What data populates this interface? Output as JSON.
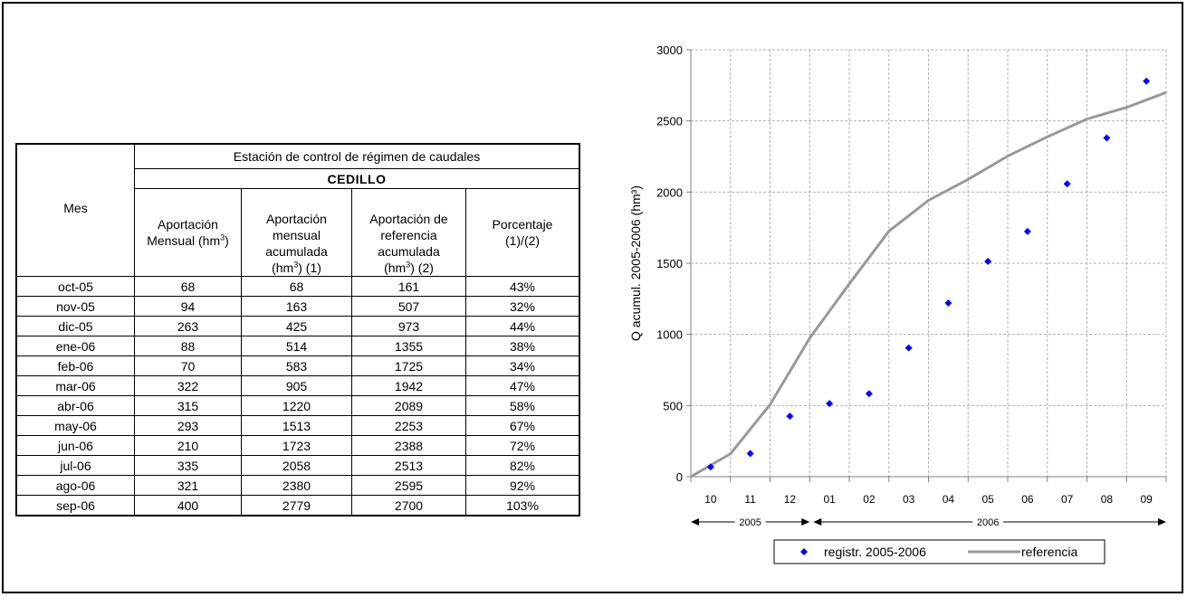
{
  "table": {
    "header_group": "Estación de control de régimen de caudales",
    "station": "CEDILLO",
    "col_mes": "Mes",
    "col1": {
      "line1": "Aportación",
      "line2": "Mensual (hm",
      "sup": "3",
      "line2_end": ")"
    },
    "col2": {
      "line1": "Aportación",
      "line2": "mensual",
      "line3": "acumulada",
      "line4": "(hm",
      "sup": "3",
      "line4_end": ") (1)"
    },
    "col3": {
      "line1": "Aportación de",
      "line2": "referencia",
      "line3": "acumulada",
      "line4": "(hm",
      "sup": "3",
      "line4_end": ") (2)"
    },
    "col4": {
      "line1": "Porcentaje",
      "line2": "(1)/(2)"
    },
    "rows": [
      [
        "oct-05",
        "68",
        "68",
        "161",
        "43%"
      ],
      [
        "nov-05",
        "94",
        "163",
        "507",
        "32%"
      ],
      [
        "dic-05",
        "263",
        "425",
        "973",
        "44%"
      ],
      [
        "ene-06",
        "88",
        "514",
        "1355",
        "38%"
      ],
      [
        "feb-06",
        "70",
        "583",
        "1725",
        "34%"
      ],
      [
        "mar-06",
        "322",
        "905",
        "1942",
        "47%"
      ],
      [
        "abr-06",
        "315",
        "1220",
        "2089",
        "58%"
      ],
      [
        "may-06",
        "293",
        "1513",
        "2253",
        "67%"
      ],
      [
        "jun-06",
        "210",
        "1723",
        "2388",
        "72%"
      ],
      [
        "jul-06",
        "335",
        "2058",
        "2513",
        "82%"
      ],
      [
        "ago-06",
        "321",
        "2380",
        "2595",
        "92%"
      ],
      [
        "sep-06",
        "400",
        "2779",
        "2700",
        "103%"
      ]
    ]
  },
  "chart_data": {
    "type": "scatter",
    "ylabel": "Q acumul. 2005-2006 (hm³)",
    "ylim": [
      0,
      3000
    ],
    "yticks": [
      "0",
      "500",
      "1000",
      "1500",
      "2000",
      "2500",
      "3000"
    ],
    "month_labels": [
      "10",
      "11",
      "12",
      "01",
      "02",
      "03",
      "04",
      "05",
      "06",
      "07",
      "08",
      "09"
    ],
    "year_labels": [
      "2005",
      "2006"
    ],
    "grid": true,
    "legend_position": "bottom",
    "series": [
      {
        "name": "registr. 2005-2006",
        "kind": "points",
        "color": "#0000ff",
        "values": [
          68,
          163,
          425,
          514,
          583,
          905,
          1220,
          1513,
          1723,
          2058,
          2380,
          2779
        ]
      },
      {
        "name": "referencia",
        "kind": "line",
        "color": "#999999",
        "values": [
          0,
          161,
          507,
          973,
          1355,
          1725,
          1942,
          2089,
          2253,
          2388,
          2513,
          2595,
          2700
        ]
      }
    ]
  }
}
